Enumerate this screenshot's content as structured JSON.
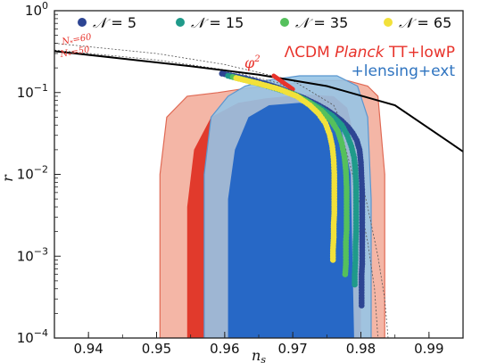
{
  "chart_data": {
    "type": "scatter",
    "xlabel": "n_s",
    "ylabel": "r",
    "xlim": [
      0.935,
      0.995
    ],
    "ylim_log10": [
      -4,
      0
    ],
    "x_ticks": [
      "0.94",
      "0.95",
      "0.96",
      "0.97",
      "0.98",
      "0.99"
    ],
    "y_ticks": [
      {
        "base": "10",
        "exp": "0"
      },
      {
        "base": "10",
        "exp": "−1"
      },
      {
        "base": "10",
        "exp": "−2"
      },
      {
        "base": "10",
        "exp": "−3"
      },
      {
        "base": "10",
        "exp": "−4"
      }
    ],
    "legend": {
      "symbol": "𝒩",
      "position": "top",
      "entries": [
        {
          "value": "5",
          "color": "#2d4593"
        },
        {
          "value": "15",
          "color": "#1f9a8a"
        },
        {
          "value": "35",
          "color": "#55c05c"
        },
        {
          "value": "65",
          "color": "#f2e13a"
        }
      ]
    },
    "contour_labels": {
      "planck": {
        "prefix": "ΛCDM ",
        "italic": "Planck",
        "suffix": " TT+lowP",
        "color": "#e8332b"
      },
      "lensing": {
        "text": "+lensing+ext",
        "color": "#2f74c0"
      }
    },
    "phi_label": {
      "base": "φ",
      "exp": "2"
    },
    "n_star_labels": [
      {
        "main": "N",
        "sub": "*",
        "value": "=60"
      },
      {
        "main": "N",
        "sub": "*",
        "value": "=50"
      }
    ],
    "colors": {
      "planck_outer": "#f4b6a6",
      "planck_inner": "#e13a2c",
      "lensing_outer": "#97c4e6",
      "lensing_inner": "#2768c6",
      "phi2_segment": "#e8332b"
    },
    "regions": {
      "planck_2sigma": [
        [
          0.9505,
          0.0001
        ],
        [
          0.9505,
          0.01
        ],
        [
          0.9515,
          0.05
        ],
        [
          0.9545,
          0.09
        ],
        [
          0.959,
          0.1
        ],
        [
          0.963,
          0.112
        ],
        [
          0.968,
          0.123
        ],
        [
          0.974,
          0.14
        ],
        [
          0.978,
          0.14
        ],
        [
          0.981,
          0.12
        ],
        [
          0.9825,
          0.09
        ],
        [
          0.9835,
          0.01
        ],
        [
          0.9835,
          0.0001
        ]
      ],
      "planck_1sigma": [
        [
          0.9545,
          0.0001
        ],
        [
          0.9545,
          0.004
        ],
        [
          0.9555,
          0.02
        ],
        [
          0.958,
          0.05
        ],
        [
          0.962,
          0.075
        ],
        [
          0.966,
          0.085
        ],
        [
          0.972,
          0.095
        ],
        [
          0.976,
          0.09
        ],
        [
          0.978,
          0.065
        ],
        [
          0.9795,
          0.02
        ],
        [
          0.98,
          0.002
        ],
        [
          0.98,
          0.0001
        ]
      ],
      "lensing_2sigma": [
        [
          0.957,
          0.0001
        ],
        [
          0.957,
          0.01
        ],
        [
          0.958,
          0.05
        ],
        [
          0.9605,
          0.09
        ],
        [
          0.963,
          0.12
        ],
        [
          0.966,
          0.14
        ],
        [
          0.971,
          0.16
        ],
        [
          0.9765,
          0.16
        ],
        [
          0.9795,
          0.12
        ],
        [
          0.981,
          0.05
        ],
        [
          0.9815,
          0.005
        ],
        [
          0.9815,
          0.0001
        ]
      ],
      "lensing_1sigma": [
        [
          0.9605,
          0.0001
        ],
        [
          0.9605,
          0.005
        ],
        [
          0.9615,
          0.02
        ],
        [
          0.9635,
          0.05
        ],
        [
          0.9665,
          0.07
        ],
        [
          0.971,
          0.075
        ],
        [
          0.9745,
          0.065
        ],
        [
          0.977,
          0.04
        ],
        [
          0.9785,
          0.01
        ],
        [
          0.979,
          0.0001
        ]
      ]
    },
    "phi2_segment": [
      [
        0.9672,
        0.16
      ],
      [
        0.97,
        0.11
      ]
    ],
    "series": [
      {
        "name": "𝒩 = 5",
        "color": "#2d4593",
        "points": [
          [
            0.9596,
            0.17
          ],
          [
            0.9613,
            0.16
          ],
          [
            0.9629,
            0.15
          ],
          [
            0.9643,
            0.14
          ],
          [
            0.9657,
            0.13
          ],
          [
            0.9671,
            0.12
          ],
          [
            0.9684,
            0.11
          ],
          [
            0.9696,
            0.1
          ],
          [
            0.9717,
            0.085
          ],
          [
            0.9735,
            0.072
          ],
          [
            0.9749,
            0.062
          ],
          [
            0.9761,
            0.053
          ],
          [
            0.9772,
            0.045
          ],
          [
            0.9781,
            0.038
          ],
          [
            0.9788,
            0.032
          ],
          [
            0.9794,
            0.026
          ],
          [
            0.9798,
            0.02
          ],
          [
            0.98,
            0.014
          ],
          [
            0.9801,
            0.009
          ],
          [
            0.9802,
            0.006
          ],
          [
            0.9802,
            0.004
          ],
          [
            0.9802,
            0.0028
          ],
          [
            0.9802,
            0.002
          ],
          [
            0.9802,
            0.0015
          ],
          [
            0.9802,
            0.0011
          ],
          [
            0.9802,
            0.0008
          ],
          [
            0.9801,
            0.0006
          ],
          [
            0.9801,
            0.00045
          ],
          [
            0.9801,
            0.00033
          ],
          [
            0.9801,
            0.00025
          ]
        ]
      },
      {
        "name": "𝒩 = 15",
        "color": "#1f9a8a",
        "points": [
          [
            0.9605,
            0.16
          ],
          [
            0.9634,
            0.14
          ],
          [
            0.9663,
            0.12
          ],
          [
            0.9694,
            0.1
          ],
          [
            0.972,
            0.08
          ],
          [
            0.974,
            0.065
          ],
          [
            0.9758,
            0.052
          ],
          [
            0.9772,
            0.04
          ],
          [
            0.978,
            0.03
          ],
          [
            0.9786,
            0.022
          ],
          [
            0.979,
            0.016
          ],
          [
            0.9792,
            0.011
          ],
          [
            0.9793,
            0.007
          ],
          [
            0.9793,
            0.0045
          ],
          [
            0.9793,
            0.003
          ],
          [
            0.9793,
            0.002
          ],
          [
            0.9792,
            0.0013
          ],
          [
            0.9792,
            0.0009
          ],
          [
            0.9791,
            0.0006
          ],
          [
            0.9791,
            0.00045
          ]
        ]
      },
      {
        "name": "𝒩 = 35",
        "color": "#55c05c",
        "points": [
          [
            0.9612,
            0.155
          ],
          [
            0.964,
            0.135
          ],
          [
            0.9672,
            0.115
          ],
          [
            0.9702,
            0.095
          ],
          [
            0.9725,
            0.075
          ],
          [
            0.9742,
            0.06
          ],
          [
            0.9756,
            0.046
          ],
          [
            0.9766,
            0.034
          ],
          [
            0.9772,
            0.024
          ],
          [
            0.9776,
            0.016
          ],
          [
            0.9778,
            0.011
          ],
          [
            0.9779,
            0.007
          ],
          [
            0.9779,
            0.0045
          ],
          [
            0.9779,
            0.003
          ],
          [
            0.9779,
            0.0021
          ],
          [
            0.9778,
            0.0015
          ],
          [
            0.9778,
            0.0011
          ],
          [
            0.9778,
            0.0008
          ],
          [
            0.9777,
            0.0006
          ]
        ]
      },
      {
        "name": "𝒩 = 65",
        "color": "#f2e13a",
        "points": [
          [
            0.9617,
            0.15
          ],
          [
            0.9648,
            0.13
          ],
          [
            0.968,
            0.11
          ],
          [
            0.9706,
            0.09
          ],
          [
            0.9725,
            0.07
          ],
          [
            0.9738,
            0.055
          ],
          [
            0.9748,
            0.042
          ],
          [
            0.9754,
            0.031
          ],
          [
            0.9758,
            0.022
          ],
          [
            0.976,
            0.015
          ],
          [
            0.9761,
            0.01
          ],
          [
            0.9761,
            0.007
          ],
          [
            0.9761,
            0.0048
          ],
          [
            0.9761,
            0.0034
          ],
          [
            0.976,
            0.0024
          ],
          [
            0.976,
            0.0017
          ],
          [
            0.9759,
            0.0012
          ],
          [
            0.9759,
            0.0009
          ]
        ]
      }
    ],
    "chaotic_line": [
      [
        0.935,
        0.32
      ],
      [
        0.945,
        0.26
      ],
      [
        0.955,
        0.21
      ],
      [
        0.965,
        0.165
      ],
      [
        0.975,
        0.12
      ],
      [
        0.985,
        0.07
      ],
      [
        0.995,
        0.019
      ]
    ],
    "nstar60_line": [
      [
        0.935,
        0.4
      ],
      [
        0.95,
        0.3
      ],
      [
        0.96,
        0.22
      ],
      [
        0.97,
        0.14
      ],
      [
        0.976,
        0.07
      ],
      [
        0.979,
        0.02
      ],
      [
        0.981,
        0.004
      ],
      [
        0.9825,
        0.001
      ],
      [
        0.9835,
        0.0003
      ],
      [
        0.984,
        0.0001
      ]
    ],
    "nstar50_line": [
      [
        0.935,
        0.33
      ],
      [
        0.95,
        0.25
      ],
      [
        0.96,
        0.19
      ],
      [
        0.968,
        0.13
      ],
      [
        0.974,
        0.07
      ],
      [
        0.9775,
        0.025
      ],
      [
        0.9795,
        0.006
      ],
      [
        0.981,
        0.0015
      ],
      [
        0.982,
        0.0004
      ],
      [
        0.9825,
        0.0001
      ]
    ]
  }
}
